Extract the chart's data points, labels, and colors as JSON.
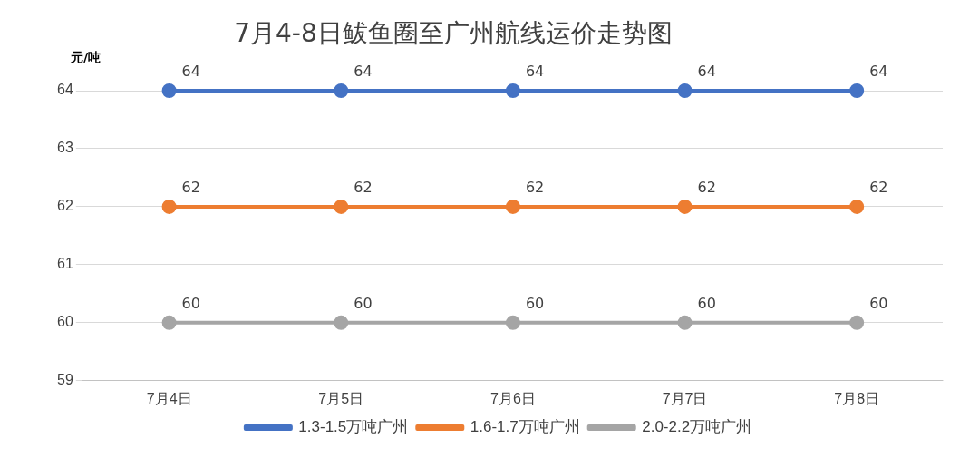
{
  "chart_data": {
    "type": "line",
    "title": "7月4-8日鲅鱼圈至广州航线运价走势图",
    "ylabel": "元/吨",
    "categories": [
      "7月4日",
      "7月5日",
      "7月6日",
      "7月7日",
      "7月8日"
    ],
    "series": [
      {
        "name": "1.3-1.5万吨广州",
        "color": "#4472c4",
        "values": [
          64,
          64,
          64,
          64,
          64
        ]
      },
      {
        "name": "1.6-1.7万吨广州",
        "color": "#ed7d31",
        "values": [
          62,
          62,
          62,
          62,
          62
        ]
      },
      {
        "name": "2.0-2.2万吨广州",
        "color": "#a5a5a5",
        "values": [
          60,
          60,
          60,
          60,
          60
        ]
      }
    ],
    "ylim": [
      59,
      64
    ],
    "yticks": [
      59,
      60,
      61,
      62,
      63,
      64
    ],
    "grid": "y",
    "legend": "bottom",
    "marker": "circle",
    "line_style": "solid",
    "data_labels": true
  }
}
